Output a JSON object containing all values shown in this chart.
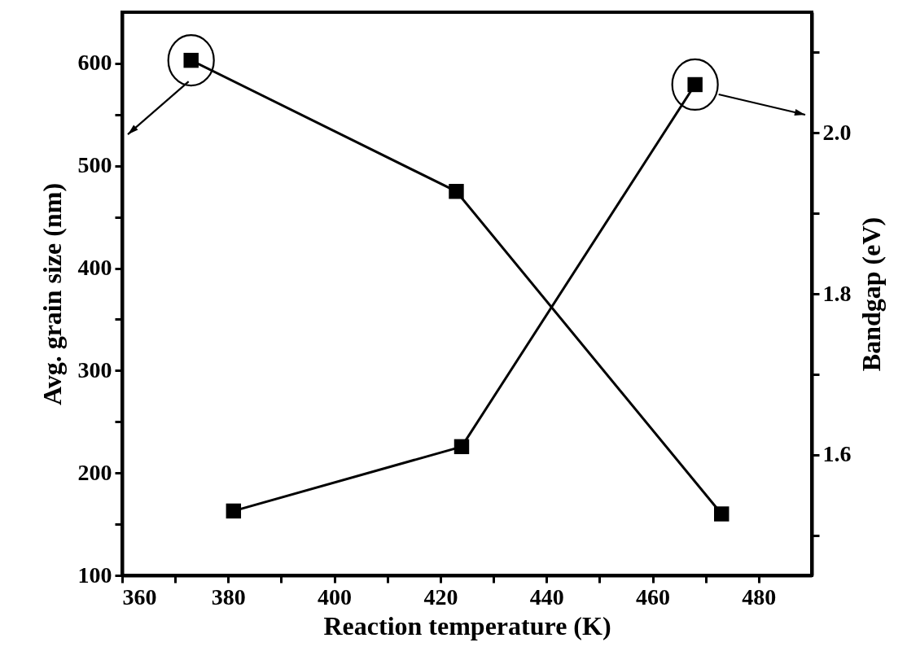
{
  "chart_data": {
    "type": "line",
    "xlabel": "Reaction temperature (K)",
    "ylabel": "Avg. grain size (nm)",
    "y2label": "Bandgap (eV)",
    "marker": "square",
    "line_style": "solid",
    "xlim": [
      360,
      490
    ],
    "xticks": [
      360,
      {
        "value": 370,
        "label": null
      },
      380,
      {
        "value": 390,
        "label": null
      },
      400,
      {
        "value": 410,
        "label": null
      },
      420,
      {
        "value": 430,
        "label": null
      },
      440,
      {
        "value": 450,
        "label": null
      },
      460,
      {
        "value": 470,
        "label": null
      },
      480
    ],
    "ylim": [
      100,
      650
    ],
    "yticks": [
      100,
      {
        "value": 150,
        "label": null
      },
      200,
      {
        "value": 250,
        "label": null
      },
      300,
      {
        "value": 350,
        "label": null
      },
      400,
      {
        "value": 450,
        "label": null
      },
      500,
      {
        "value": 550,
        "label": null
      },
      600
    ],
    "y2lim": [
      1.45,
      2.15
    ],
    "y2ticks": [
      {
        "value": 1.5,
        "label": null
      },
      1.6,
      {
        "value": 1.7,
        "label": null
      },
      1.8,
      {
        "value": 1.9,
        "label": null
      },
      {
        "value": 2,
        "label": "2.0"
      },
      {
        "value": 2.1,
        "label": null
      }
    ],
    "series": [
      {
        "color": "#000000",
        "x": [
          373,
          423,
          473
        ],
        "values": [
          603,
          475,
          160
        ]
      },
      {
        "color": "#000000",
        "axis": "y2",
        "x": [
          381,
          424,
          468
        ],
        "values": [
          1.53,
          1.61,
          2.06
        ]
      }
    ]
  }
}
